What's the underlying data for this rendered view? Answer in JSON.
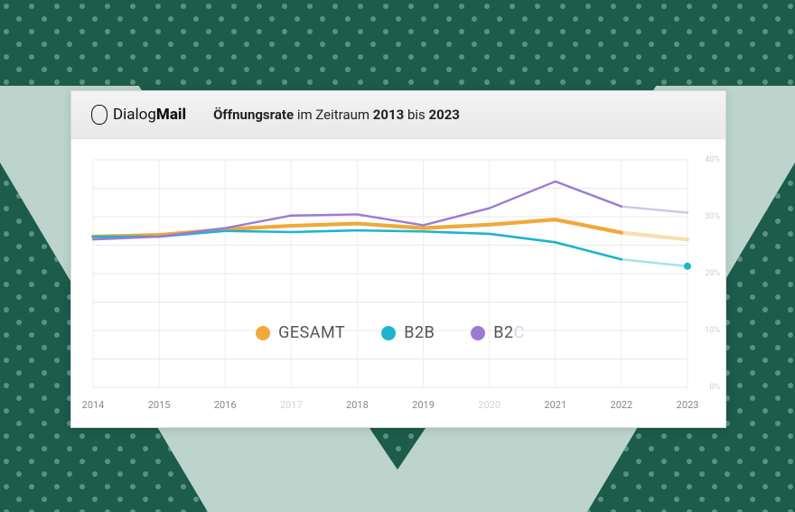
{
  "brand": {
    "name_a": "Dialog",
    "name_b": "Mail"
  },
  "title": {
    "part1": "Öffnungsrate",
    "part2": " im Zeitraum ",
    "part3": "2013",
    "part4": " bis ",
    "part5": "2023"
  },
  "chart": {
    "type": "line",
    "background_color": "#ffffff",
    "grid_color": "#e9e9e9",
    "ylim": [
      0,
      40
    ],
    "ytick_step": 5,
    "ytick_labels": [
      "0%",
      "",
      "10%",
      "",
      "20%",
      "",
      "30%",
      "",
      "40%"
    ],
    "ytick_label_color": "#cfcfcf",
    "ytick_fontsize": 9,
    "x_categories": [
      "2014",
      "2015",
      "2016",
      "2017",
      "2018",
      "2019",
      "2020",
      "2021",
      "2022",
      "2023"
    ],
    "x_faded": [
      "2017",
      "2020"
    ],
    "x_fontsize": 11,
    "series": [
      {
        "key": "gesamt",
        "label": "GESAMT",
        "color": "#f0a93a",
        "width": 4.2,
        "values": [
          26.5,
          26.8,
          27.8,
          28.4,
          28.8,
          28.0,
          28.6,
          29.5,
          27.2,
          26.0
        ],
        "fade_from_index": 8,
        "fade_opacity": 0.38
      },
      {
        "key": "b2b",
        "label": "B2B",
        "color": "#1db4cf",
        "width": 2.6,
        "values": [
          26.5,
          26.5,
          27.5,
          27.3,
          27.6,
          27.4,
          27.0,
          25.5,
          22.5,
          21.3
        ],
        "fade_from_index": 8,
        "fade_opacity": 0.38,
        "marker_last": true,
        "marker_style": "circle",
        "marker_size": 4
      },
      {
        "key": "b2c",
        "label": "B2C",
        "color": "#9a7bd4",
        "width": 2.4,
        "values": [
          26.0,
          26.5,
          28.0,
          30.2,
          30.4,
          28.5,
          31.5,
          36.2,
          31.8,
          30.7
        ],
        "fade_from_index": 8,
        "fade_opacity": 0.45
      }
    ],
    "legend_fontsize": 18,
    "legend_swatch_radius": 8,
    "legend_faded_last": true
  },
  "decor": {
    "page_bg": "#bcd4cb",
    "dark": "#1d5b4b",
    "dot": "#5a9183",
    "dot_r": 3,
    "dot_gap": 28
  }
}
